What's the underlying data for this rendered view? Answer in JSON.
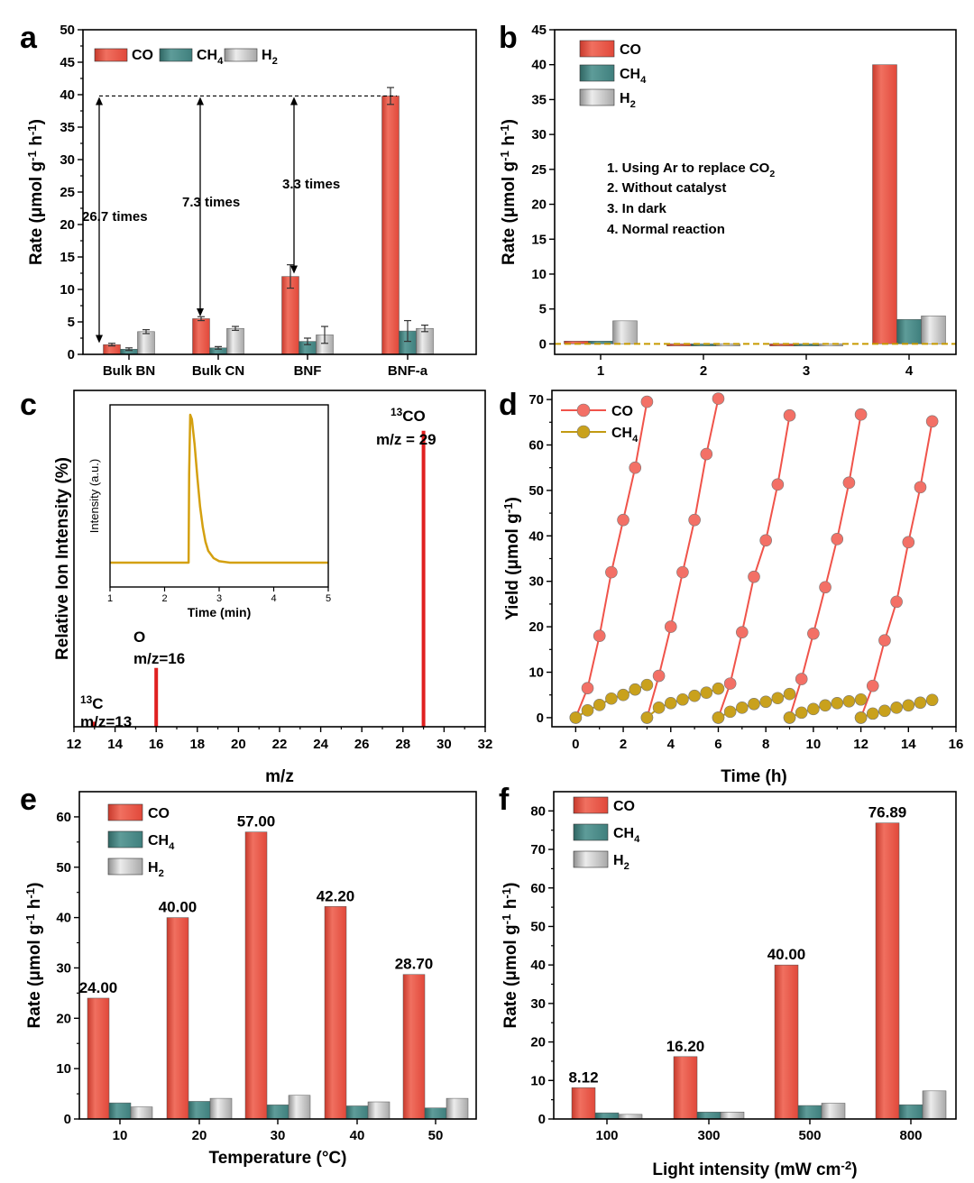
{
  "colors": {
    "co": "#e1483a",
    "ch4": "#3f7f7d",
    "h2": "#a8a8a8",
    "co_line": "#f0534a",
    "ch4_line": "#c29a11",
    "inset_line": "#d4a010",
    "dashed": "#c79a00"
  },
  "chart_data": [
    {
      "panel": "a",
      "type": "bar",
      "ylabel": "Rate (μmol g⁻¹ h⁻¹)",
      "xlabel": "",
      "ylim": [
        0,
        50
      ],
      "yticks": [
        0,
        5,
        10,
        15,
        20,
        25,
        30,
        35,
        40,
        45,
        50
      ],
      "categories": [
        "Bulk BN",
        "Bulk CN",
        "BNF",
        "BNF-a"
      ],
      "series": [
        {
          "name": "CO",
          "values": [
            1.5,
            5.5,
            12,
            39.8
          ],
          "errors": [
            0.2,
            0.3,
            1.8,
            1.3
          ]
        },
        {
          "name": "CH4",
          "values": [
            0.8,
            1.0,
            2.0,
            3.6
          ],
          "errors": [
            0.2,
            0.2,
            0.5,
            1.6
          ]
        },
        {
          "name": "H2",
          "values": [
            3.5,
            4.0,
            3.0,
            4.0
          ],
          "errors": [
            0.3,
            0.3,
            1.3,
            0.5
          ]
        }
      ],
      "reference_line": 39.8,
      "annotations": [
        "26.7 times",
        "7.3 times",
        "3.3 times"
      ],
      "legend_position": "top-left"
    },
    {
      "panel": "b",
      "type": "bar",
      "ylabel": "Rate (μmol g⁻¹ h⁻¹)",
      "xlabel": "",
      "ylim": [
        -1.5,
        45
      ],
      "yticks": [
        0,
        5,
        10,
        15,
        20,
        25,
        30,
        35,
        40,
        45
      ],
      "categories": [
        "1",
        "2",
        "3",
        "4"
      ],
      "series": [
        {
          "name": "CO",
          "values": [
            0.4,
            -0.3,
            -0.3,
            40
          ]
        },
        {
          "name": "CH4",
          "values": [
            0.4,
            -0.3,
            -0.3,
            3.5
          ]
        },
        {
          "name": "H2",
          "values": [
            3.3,
            -0.3,
            -0.3,
            4.0
          ]
        }
      ],
      "reference_line": 0,
      "notes": [
        "1. Using Ar to replace CO₂",
        "2. Without catalyst",
        "3. In dark",
        "4. Normal reaction"
      ],
      "legend_position": "top-left"
    },
    {
      "panel": "c",
      "type": "bar",
      "ylabel": "Relative Ion Intensity (%)",
      "xlabel": "m/z",
      "xlim": [
        12,
        32
      ],
      "xticks": [
        12,
        14,
        16,
        18,
        20,
        22,
        24,
        26,
        28,
        30,
        32
      ],
      "ylim": [
        0,
        100
      ],
      "peaks": [
        {
          "x": 13,
          "y": 1.5
        },
        {
          "x": 16,
          "y": 17.5
        },
        {
          "x": 29,
          "y": 88
        }
      ],
      "peak_labels": [
        {
          "iso": "13",
          "name": "C",
          "mz": "m/z=13"
        },
        {
          "name": "O",
          "mz": "m/z=16"
        },
        {
          "iso": "13",
          "name": "CO",
          "mz": "m/z = 29"
        }
      ],
      "inset": {
        "type": "line",
        "xlabel": "Time (min)",
        "ylabel": "Intensity (a.u.)",
        "xlim": [
          1,
          5
        ],
        "xticks": [
          1,
          2,
          3,
          4,
          5
        ],
        "x": [
          1.0,
          2.4,
          2.44,
          2.45,
          2.47,
          2.5,
          2.55,
          2.6,
          2.65,
          2.7,
          2.75,
          2.8,
          2.9,
          3.0,
          3.2,
          5.0
        ],
        "y": [
          0,
          0,
          0,
          0.6,
          1.0,
          0.97,
          0.8,
          0.58,
          0.38,
          0.24,
          0.14,
          0.08,
          0.03,
          0.01,
          0,
          0
        ]
      }
    },
    {
      "panel": "d",
      "type": "line",
      "ylabel": "Yield (μmol g⁻¹)",
      "xlabel": "Time (h)",
      "xlim": [
        -1,
        16
      ],
      "xticks": [
        0,
        2,
        4,
        6,
        8,
        10,
        12,
        14,
        16
      ],
      "ylim": [
        -2,
        72
      ],
      "yticks": [
        0,
        10,
        20,
        30,
        40,
        50,
        60,
        70
      ],
      "series": [
        {
          "name": "CO",
          "cycles": [
            {
              "x": [
                0.0,
                0.5,
                1.0,
                1.5,
                2.0,
                2.5,
                3.0
              ],
              "y": [
                0,
                6.5,
                18,
                32,
                43.5,
                55,
                69.5
              ]
            },
            {
              "x": [
                3.0,
                3.5,
                4.0,
                4.5,
                5.0,
                5.5,
                6.0
              ],
              "y": [
                0,
                9.2,
                20,
                32,
                43.5,
                58,
                70.2
              ]
            },
            {
              "x": [
                6.0,
                6.5,
                7.0,
                7.5,
                8.0,
                8.5,
                9.0
              ],
              "y": [
                0,
                7.5,
                18.8,
                31,
                39,
                51.3,
                66.5
              ]
            },
            {
              "x": [
                9.0,
                9.5,
                10.0,
                10.5,
                11.0,
                11.5,
                12.0
              ],
              "y": [
                0,
                8.5,
                18.5,
                28.7,
                39.3,
                51.7,
                66.7
              ]
            },
            {
              "x": [
                12.0,
                12.5,
                13.0,
                13.5,
                14.0,
                14.5,
                15.0
              ],
              "y": [
                0,
                7,
                17,
                25.5,
                38.6,
                50.7,
                65.2
              ]
            }
          ]
        },
        {
          "name": "CH4",
          "cycles": [
            {
              "x": [
                0.0,
                0.5,
                1.0,
                1.5,
                2.0,
                2.5,
                3.0
              ],
              "y": [
                0,
                1.6,
                2.8,
                4.2,
                5.0,
                6.2,
                7.2
              ]
            },
            {
              "x": [
                3.0,
                3.5,
                4.0,
                4.5,
                5.0,
                5.5,
                6.0
              ],
              "y": [
                0,
                2.2,
                3.2,
                4.0,
                4.8,
                5.5,
                6.4
              ]
            },
            {
              "x": [
                6.0,
                6.5,
                7.0,
                7.5,
                8.0,
                8.5,
                9.0
              ],
              "y": [
                0,
                1.3,
                2.2,
                3.0,
                3.5,
                4.3,
                5.2
              ]
            },
            {
              "x": [
                9.0,
                9.5,
                10.0,
                10.5,
                11.0,
                11.5,
                12.0
              ],
              "y": [
                0,
                1.1,
                1.9,
                2.7,
                3.2,
                3.6,
                4.0
              ]
            },
            {
              "x": [
                12.0,
                12.5,
                13.0,
                13.5,
                14.0,
                14.5,
                15.0
              ],
              "y": [
                0,
                0.9,
                1.5,
                2.2,
                2.7,
                3.3,
                3.9
              ]
            }
          ]
        }
      ],
      "legend_position": "top-left"
    },
    {
      "panel": "e",
      "type": "bar",
      "ylabel": "Rate (μmol g⁻¹ h⁻¹)",
      "xlabel": "Temperature (°C)",
      "ylim": [
        0,
        65
      ],
      "yticks": [
        0,
        10,
        20,
        30,
        40,
        50,
        60
      ],
      "categories": [
        "10",
        "20",
        "30",
        "40",
        "50"
      ],
      "series": [
        {
          "name": "CO",
          "values": [
            24.0,
            40.0,
            57.0,
            42.2,
            28.7
          ]
        },
        {
          "name": "CH4",
          "values": [
            3.2,
            3.5,
            2.8,
            2.6,
            2.2
          ]
        },
        {
          "name": "H2",
          "values": [
            2.4,
            4.1,
            4.7,
            3.4,
            4.1
          ]
        }
      ],
      "data_labels": [
        "24.00",
        "40.00",
        "57.00",
        "42.20",
        "28.70"
      ],
      "legend_position": "top-left"
    },
    {
      "panel": "f",
      "type": "bar",
      "ylabel": "Rate (μmol g⁻¹ h⁻¹)",
      "xlabel": "Light intensity (mW cm⁻²)",
      "ylim": [
        0,
        85
      ],
      "yticks": [
        0,
        10,
        20,
        30,
        40,
        50,
        60,
        70,
        80
      ],
      "categories": [
        "100",
        "300",
        "500",
        "800"
      ],
      "series": [
        {
          "name": "CO",
          "values": [
            8.12,
            16.2,
            40.0,
            76.89
          ]
        },
        {
          "name": "CH4",
          "values": [
            1.6,
            1.8,
            3.5,
            3.7
          ]
        },
        {
          "name": "H2",
          "values": [
            1.2,
            1.8,
            4.1,
            7.3
          ]
        }
      ],
      "data_labels": [
        "8.12",
        "16.20",
        "40.00",
        "76.89"
      ],
      "legend_position": "top-left"
    }
  ]
}
